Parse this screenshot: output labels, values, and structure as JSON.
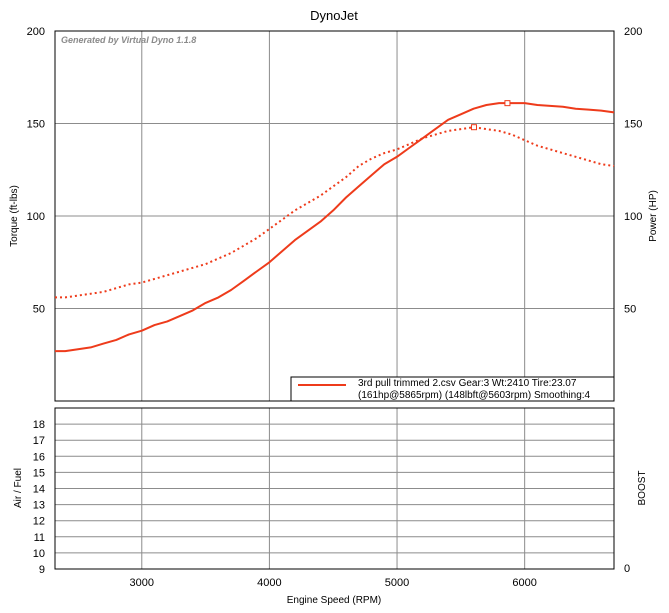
{
  "chart_data": [
    {
      "type": "line",
      "title": "DynoJet",
      "watermark": "Generated by Virtual Dyno 1.1.8",
      "xlabel": "Engine Speed (RPM)",
      "ylabel": "Torque (ft-lbs)",
      "y2label": "Power (HP)",
      "xlim": [
        2320,
        6700
      ],
      "ylim": [
        0,
        200
      ],
      "y2lim": [
        0,
        200
      ],
      "x_ticks": [
        "3000",
        "4000",
        "5000",
        "6000"
      ],
      "y_ticks": [
        "50",
        "100",
        "150",
        "200"
      ],
      "y2_ticks": [
        "50",
        "100",
        "150",
        "200"
      ],
      "grid": true,
      "legend": {
        "position": "bottom-right",
        "line1": "3rd pull trimmed 2.csv Gear:3 Wt:2410 Tire:23.07",
        "line2": "(161hp@5865rpm) (148lbft@5603rpm) Smoothing:4",
        "color": "#ee3b1b"
      },
      "series": [
        {
          "style": "solid",
          "axis": "power",
          "color": "#ee3b1b",
          "x": [
            2320,
            2400,
            2500,
            2600,
            2700,
            2800,
            2900,
            3000,
            3100,
            3200,
            3300,
            3400,
            3500,
            3600,
            3700,
            3800,
            3900,
            4000,
            4100,
            4200,
            4300,
            4400,
            4500,
            4600,
            4700,
            4800,
            4900,
            5000,
            5100,
            5200,
            5300,
            5400,
            5500,
            5600,
            5700,
            5800,
            5865,
            5900,
            6000,
            6100,
            6200,
            6300,
            6400,
            6500,
            6600,
            6700
          ],
          "y": [
            27,
            27,
            28,
            29,
            31,
            33,
            36,
            38,
            41,
            43,
            46,
            49,
            53,
            56,
            60,
            65,
            70,
            75,
            81,
            87,
            92,
            97,
            103,
            110,
            116,
            122,
            128,
            132,
            137,
            142,
            147,
            152,
            155,
            158,
            160,
            161,
            161,
            161,
            161,
            160,
            159.5,
            159,
            158,
            157.5,
            157,
            156
          ]
        },
        {
          "style": "dotted",
          "axis": "torque",
          "color": "#ee3b1b",
          "x": [
            2320,
            2400,
            2500,
            2600,
            2700,
            2800,
            2900,
            3000,
            3100,
            3200,
            3300,
            3400,
            3500,
            3600,
            3700,
            3800,
            3900,
            4000,
            4100,
            4200,
            4300,
            4400,
            4500,
            4600,
            4700,
            4800,
            4900,
            5000,
            5100,
            5200,
            5300,
            5400,
            5500,
            5603,
            5700,
            5800,
            5900,
            6000,
            6100,
            6200,
            6300,
            6400,
            6500,
            6600,
            6700
          ],
          "y": [
            56,
            56,
            57,
            58,
            59,
            61,
            63,
            64,
            66,
            68,
            70,
            72,
            74,
            77,
            80,
            84,
            88,
            93,
            98,
            103,
            107,
            111,
            116,
            121,
            127,
            131,
            134,
            136,
            139,
            142,
            144,
            146,
            147,
            148,
            147,
            146,
            144,
            141,
            138,
            136,
            134,
            132,
            130,
            128,
            127
          ]
        }
      ],
      "markers": [
        {
          "x": 5865,
          "y": 161
        },
        {
          "x": 5603,
          "y": 148
        }
      ]
    },
    {
      "type": "line",
      "ylabel": "Air / Fuel",
      "y2label": "BOOST",
      "xlim": [
        2320,
        6700
      ],
      "ylim": [
        9,
        19
      ],
      "y_ticks": [
        "9",
        "10",
        "11",
        "12",
        "13",
        "14",
        "15",
        "16",
        "17",
        "18"
      ],
      "y2_ticks": [
        "0"
      ],
      "grid": true,
      "series": []
    }
  ]
}
